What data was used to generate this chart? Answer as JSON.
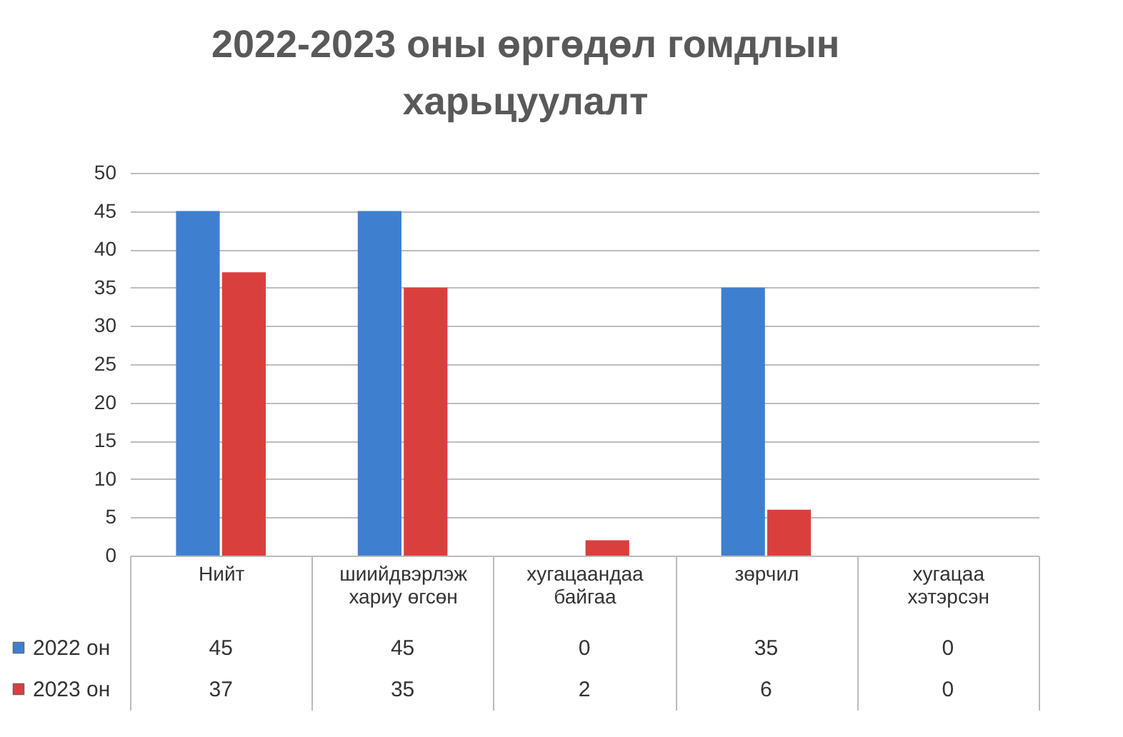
{
  "chart_data": {
    "type": "bar",
    "title": "2022-2023 оны өргөдөл гомдлын харьцуулалт",
    "categories": [
      "Нийт",
      "шиийдвэрлэж хариу өгсөн",
      "хугацаандаа байгаа",
      "зөрчил",
      "хугацаа хэтэрсэн"
    ],
    "series": [
      {
        "name": "2022 он",
        "color": "#3f7fd0",
        "values": [
          45,
          45,
          0,
          35,
          0
        ]
      },
      {
        "name": "2023 он",
        "color": "#d9403d",
        "values": [
          37,
          35,
          2,
          6,
          0
        ]
      }
    ],
    "ylim": [
      0,
      50
    ],
    "yticks": [
      0,
      5,
      10,
      15,
      20,
      25,
      30,
      35,
      40,
      45,
      50
    ],
    "grid": "y",
    "legend": "bottom",
    "data_labels": true
  }
}
